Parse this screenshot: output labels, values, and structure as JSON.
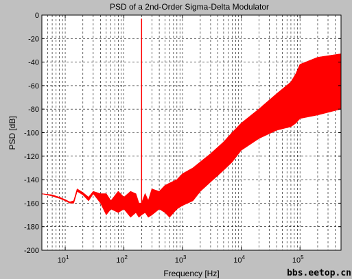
{
  "chart_data": {
    "type": "line",
    "title": "PSD of a 2nd-Order Sigma-Delta Modulator",
    "xlabel": "Frequency [Hz]",
    "ylabel": "PSD [dB]",
    "x_scale": "log",
    "xlim": [
      4,
      500000
    ],
    "ylim": [
      -200,
      0
    ],
    "x_ticks": [
      10,
      100,
      1000,
      10000,
      100000
    ],
    "x_tick_labels": [
      {
        "base": "10",
        "exp": "1"
      },
      {
        "base": "10",
        "exp": "2"
      },
      {
        "base": "10",
        "exp": "3"
      },
      {
        "base": "10",
        "exp": "4"
      },
      {
        "base": "10",
        "exp": "5"
      }
    ],
    "y_ticks": [
      0,
      -20,
      -40,
      -60,
      -80,
      -100,
      -120,
      -140,
      -160,
      -180,
      -200
    ],
    "y_tick_labels": [
      "0",
      "-20",
      "-40",
      "-60",
      "-80",
      "-100",
      "-120",
      "-140",
      "-160",
      "-180",
      "-200"
    ],
    "grid": true,
    "series": [
      {
        "color": "#ff0000",
        "signal_tone": {
          "x": 200,
          "y": -3
        },
        "x": [
          4,
          6,
          8,
          10,
          12,
          14,
          16,
          20,
          25,
          30,
          40,
          50,
          60,
          80,
          100,
          130,
          160,
          180,
          200,
          230,
          260,
          300,
          400,
          500,
          600,
          800,
          1000,
          1500,
          2000,
          3000,
          5000,
          7000,
          10000,
          20000,
          40000,
          70000,
          85000,
          100000,
          200000,
          500000
        ],
        "y_upper": [
          -152,
          -153,
          -155,
          -157,
          -159,
          -158,
          -148,
          -151,
          -155,
          -150,
          -152,
          -152,
          -158,
          -150,
          -155,
          -150,
          -152,
          -160,
          -160,
          -152,
          -158,
          -148,
          -150,
          -145,
          -143,
          -140,
          -135,
          -130,
          -125,
          -118,
          -108,
          -100,
          -92,
          -80,
          -67,
          -57,
          -50,
          -42,
          -36,
          -33
        ],
        "y_lower": [
          -152,
          -154,
          -156,
          -158,
          -160,
          -160,
          -150,
          -153,
          -158,
          -152,
          -160,
          -170,
          -165,
          -168,
          -165,
          -172,
          -168,
          -172,
          -170,
          -168,
          -172,
          -170,
          -165,
          -168,
          -172,
          -165,
          -162,
          -158,
          -150,
          -142,
          -132,
          -125,
          -115,
          -105,
          -98,
          -95,
          -92,
          -88,
          -85,
          -80
        ]
      }
    ]
  },
  "watermark": "bbs.eetop.cn"
}
